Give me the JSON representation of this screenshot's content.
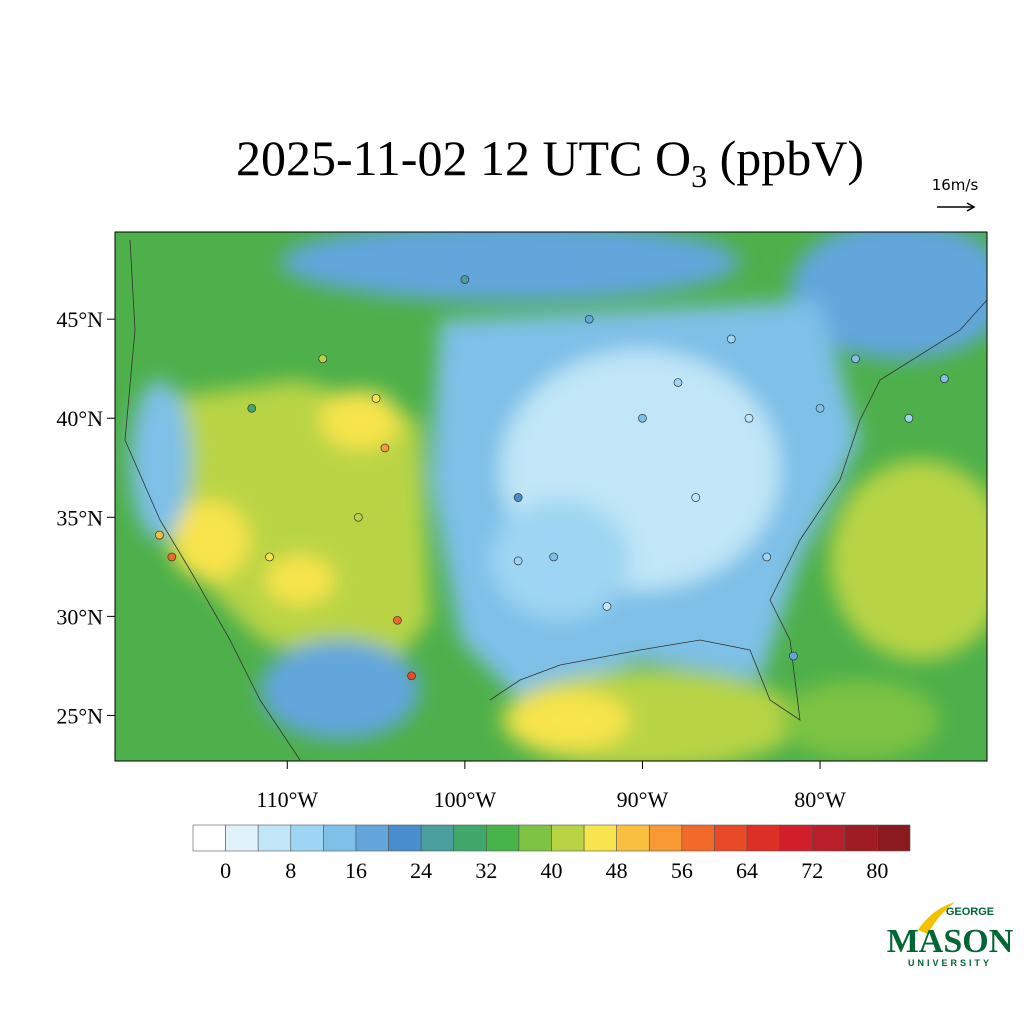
{
  "map": {
    "title": {
      "text": "2025-11-02 12 UTC O",
      "subscript": "3",
      "suffix": " (ppbV)"
    },
    "vector_reference": "16m/s",
    "xlim": [
      -119.7,
      -70.6
    ],
    "ylim": [
      22.7,
      49.4
    ],
    "lat_ticks": [
      {
        "value": 25,
        "label": "25°N"
      },
      {
        "value": 30,
        "label": "30°N"
      },
      {
        "value": 35,
        "label": "35°N"
      },
      {
        "value": 40,
        "label": "40°N"
      },
      {
        "value": 45,
        "label": "45°N"
      }
    ],
    "lon_ticks": [
      {
        "value": -110,
        "label": "110°W"
      },
      {
        "value": -100,
        "label": "100°W"
      },
      {
        "value": -90,
        "label": "90°W"
      },
      {
        "value": -80,
        "label": "80°W"
      }
    ],
    "colorbar": {
      "levels": [
        0,
        4,
        8,
        12,
        16,
        20,
        24,
        28,
        32,
        36,
        40,
        44,
        48,
        52,
        56,
        60,
        64,
        68,
        72,
        76,
        80
      ],
      "ticks": [
        0,
        8,
        16,
        24,
        32,
        40,
        48,
        56,
        64,
        72,
        80
      ],
      "colors": [
        "#ffffff",
        "#e0f3fb",
        "#c0e6f7",
        "#9dd5f2",
        "#7ec0e8",
        "#62a6dc",
        "#4a8dcd",
        "#4a9e9c",
        "#3fa86a",
        "#46b448",
        "#7dc242",
        "#b8d444",
        "#f8e44c",
        "#f9c040",
        "#f79a35",
        "#f16a2a",
        "#e84a28",
        "#dc2f26",
        "#d01f2b",
        "#b81f2a",
        "#a01c24",
        "#8b1a1e"
      ]
    },
    "stations": {
      "lon": [
        -104.5,
        -117.2,
        -116.5,
        -103.8,
        -103.0,
        -90.0,
        -88.0,
        -84.0,
        -80.0,
        -75.0,
        -95.0,
        -87.0,
        -83.0,
        -81.5,
        -92.0,
        -97.0,
        -112.0,
        -108.0,
        -105.0,
        -100.0,
        -93.0,
        -85.0,
        -78.0,
        -73.0,
        -97.0,
        -106.0,
        -111.0
      ],
      "lat": [
        38.5,
        34.1,
        33.0,
        29.8,
        27.0,
        40.0,
        41.8,
        40.0,
        40.5,
        40.0,
        33.0,
        36.0,
        33.0,
        28.0,
        30.5,
        32.8,
        40.5,
        43.0,
        41.0,
        47.0,
        45.0,
        44.0,
        43.0,
        42.0,
        36.0,
        35.0,
        33.0
      ],
      "values": [
        54,
        50,
        58,
        58,
        62,
        14,
        10,
        6,
        12,
        8,
        14,
        4,
        8,
        18,
        6,
        10,
        28,
        42,
        44,
        24,
        18,
        10,
        14,
        12,
        22,
        40,
        46
      ]
    },
    "logo": {
      "top": "GEORGE",
      "main": "MASON",
      "bottom": "UNIVERSITY"
    }
  }
}
